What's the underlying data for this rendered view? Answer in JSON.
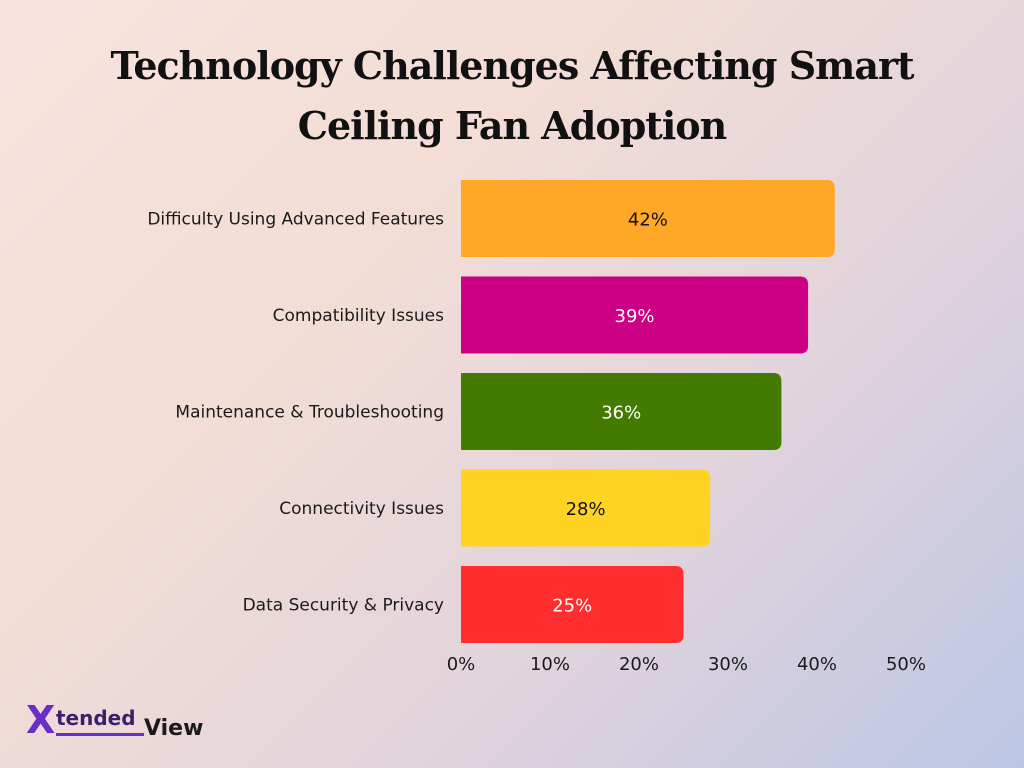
{
  "title": "Technology Challenges Affecting Smart Ceiling Fan Adoption",
  "logo": {
    "part1": "X",
    "part2": "tended",
    "part3": "View"
  },
  "chart_data": {
    "type": "bar",
    "orientation": "horizontal",
    "title": "Technology Challenges Affecting Smart Ceiling Fan Adoption",
    "categories": [
      "Difficulty Using Advanced Features",
      "Compatibility Issues",
      "Maintenance & Troubleshooting",
      "Connectivity Issues",
      "Data Security & Privacy"
    ],
    "values": [
      42,
      39,
      36,
      28,
      25
    ],
    "value_labels": [
      "42%",
      "39%",
      "36%",
      "28%",
      "25%"
    ],
    "colors": [
      "#ffa726",
      "#cc0084",
      "#437a00",
      "#ffd324",
      "#ff2d2d"
    ],
    "label_colors": [
      "#111111",
      "#ffffff",
      "#ffffff",
      "#111111",
      "#ffffff"
    ],
    "xlim": [
      0,
      50
    ],
    "x_ticks": [
      0,
      10,
      20,
      30,
      40,
      50
    ],
    "x_tick_labels": [
      "0%",
      "10%",
      "20%",
      "30%",
      "40%",
      "50%"
    ],
    "grid": false,
    "legend": "none"
  }
}
